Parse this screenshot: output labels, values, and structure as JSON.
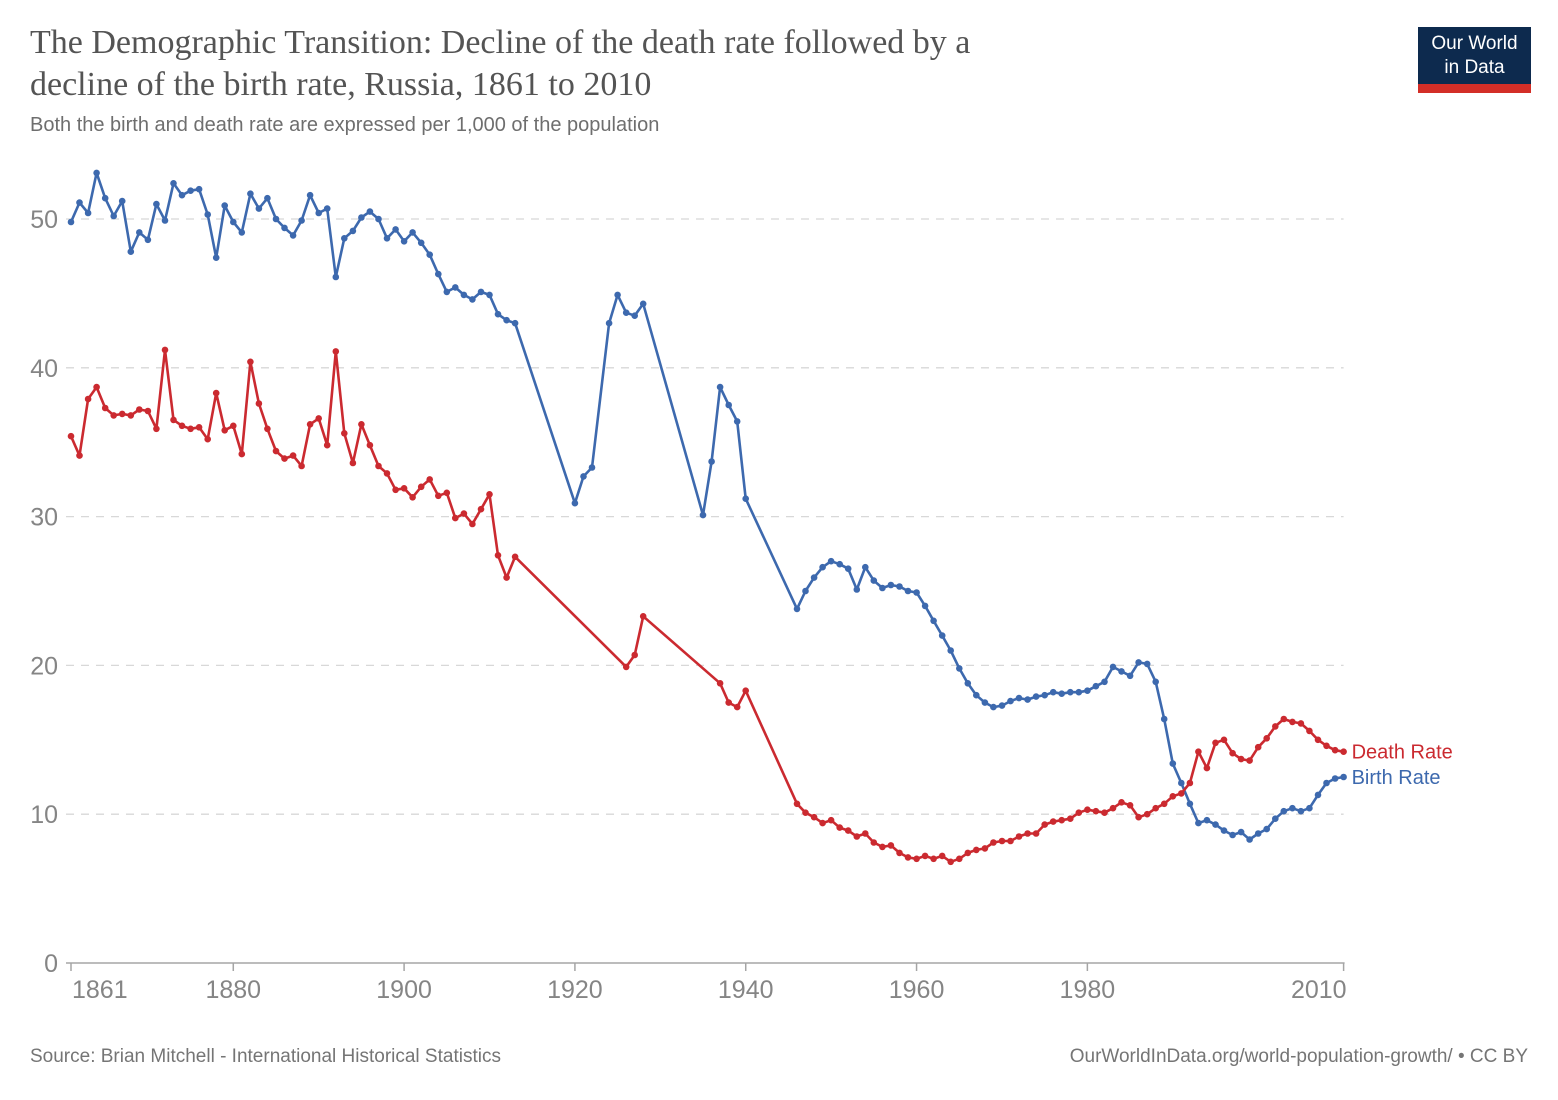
{
  "header": {
    "title_line1": "The Demographic Transition: Decline of the death rate followed by a",
    "title_line2": "decline of the birth rate, Russia, 1861 to 2010",
    "subtitle": "Both the birth and death rate are expressed per 1,000 of the population"
  },
  "logo": {
    "line1": "Our World",
    "line2": "in Data",
    "navy": "#0d2a4e",
    "red": "#d32e27"
  },
  "footer": {
    "source": "Source: Brian Mitchell - International Historical Statistics",
    "link": "OurWorldInData.org/world-population-growth/ • CC BY"
  },
  "chart_data": {
    "type": "line",
    "title": "The Demographic Transition: Decline of the death rate followed by a decline of the birth rate, Russia, 1861 to 2010",
    "subtitle": "Both the birth and death rate are expressed per 1,000 of the population",
    "xlabel": "",
    "ylabel": "",
    "x_ticks": [
      1861,
      1880,
      1900,
      1920,
      1940,
      1960,
      1980,
      2010
    ],
    "y_ticks": [
      0,
      10,
      20,
      30,
      40,
      50
    ],
    "xlim": [
      1861,
      2010
    ],
    "ylim": [
      0,
      50
    ],
    "grid": "dashed-horizontal",
    "legend_position": "end-of-line",
    "colors": {
      "birth": "#3d69ae",
      "death": "#cb2a30",
      "grid": "#d8d8d8",
      "axis": "#a5a5a5",
      "tick_text": "#858585"
    },
    "start_year": 1861,
    "years_note": "values arrays are aligned to consecutive years 1861-2010; null = no data (straight segment drawn across gap)",
    "series": [
      {
        "name": "Birth Rate",
        "color": "#3d69ae",
        "values": [
          49.8,
          51.1,
          50.4,
          53.1,
          51.4,
          50.2,
          51.2,
          47.8,
          49.1,
          48.6,
          51.0,
          49.9,
          52.4,
          51.6,
          51.9,
          52.0,
          50.3,
          47.4,
          50.9,
          49.8,
          49.1,
          51.7,
          50.7,
          51.4,
          50.0,
          49.4,
          48.9,
          49.9,
          51.6,
          50.4,
          50.7,
          46.1,
          48.7,
          49.2,
          50.1,
          50.5,
          50.0,
          48.7,
          49.3,
          48.5,
          49.1,
          48.4,
          47.6,
          46.3,
          45.1,
          45.4,
          44.9,
          44.6,
          45.1,
          44.9,
          43.6,
          43.2,
          43.0,
          null,
          null,
          null,
          null,
          null,
          null,
          30.9,
          32.7,
          33.3,
          null,
          43.0,
          44.9,
          43.7,
          43.5,
          44.3,
          null,
          null,
          null,
          null,
          null,
          null,
          30.1,
          33.7,
          38.7,
          37.5,
          36.4,
          31.2,
          null,
          null,
          null,
          null,
          null,
          23.8,
          25.0,
          25.9,
          26.6,
          27.0,
          26.8,
          26.5,
          25.1,
          26.6,
          25.7,
          25.2,
          25.4,
          25.3,
          25.0,
          24.9,
          24.0,
          23.0,
          22.0,
          21.0,
          19.8,
          18.8,
          18.0,
          17.5,
          17.2,
          17.3,
          17.6,
          17.8,
          17.7,
          17.9,
          18.0,
          18.2,
          18.1,
          18.2,
          18.2,
          18.3,
          18.6,
          18.9,
          19.9,
          19.6,
          19.3,
          20.2,
          20.1,
          18.9,
          16.4,
          13.4,
          12.1,
          10.7,
          9.4,
          9.6,
          9.3,
          8.9,
          8.6,
          8.8,
          8.3,
          8.7,
          9.0,
          9.7,
          10.2,
          10.4,
          10.2,
          10.4,
          11.3,
          12.1,
          12.4,
          12.5
        ]
      },
      {
        "name": "Death Rate",
        "color": "#cb2a30",
        "values": [
          35.4,
          34.1,
          37.9,
          38.7,
          37.3,
          36.8,
          36.9,
          36.8,
          37.2,
          37.1,
          35.9,
          41.2,
          36.5,
          36.1,
          35.9,
          36.0,
          35.2,
          38.3,
          35.8,
          36.1,
          34.2,
          40.4,
          37.6,
          35.9,
          34.4,
          33.9,
          34.1,
          33.4,
          36.2,
          36.6,
          34.8,
          41.1,
          35.6,
          33.6,
          36.2,
          34.8,
          33.4,
          32.9,
          31.8,
          31.9,
          31.3,
          32.0,
          32.5,
          31.4,
          31.6,
          29.9,
          30.2,
          29.5,
          30.5,
          31.5,
          27.4,
          25.9,
          27.3,
          null,
          null,
          null,
          null,
          null,
          null,
          null,
          null,
          null,
          null,
          null,
          null,
          19.9,
          20.7,
          23.3,
          null,
          null,
          null,
          null,
          null,
          null,
          null,
          null,
          18.8,
          17.5,
          17.2,
          18.3,
          null,
          null,
          null,
          null,
          null,
          10.7,
          10.1,
          9.8,
          9.4,
          9.6,
          9.1,
          8.9,
          8.5,
          8.7,
          8.1,
          7.8,
          7.9,
          7.4,
          7.1,
          7.0,
          7.2,
          7.0,
          7.2,
          6.8,
          7.0,
          7.4,
          7.6,
          7.7,
          8.1,
          8.2,
          8.2,
          8.5,
          8.7,
          8.7,
          9.3,
          9.5,
          9.6,
          9.7,
          10.1,
          10.3,
          10.2,
          10.1,
          10.4,
          10.8,
          10.6,
          9.8,
          10.0,
          10.4,
          10.7,
          11.2,
          11.4,
          12.1,
          14.2,
          13.1,
          14.8,
          15.0,
          14.1,
          13.7,
          13.6,
          14.5,
          15.1,
          15.9,
          16.4,
          16.2,
          16.1,
          15.6,
          15.0,
          14.6,
          14.3,
          14.2
        ]
      }
    ]
  }
}
